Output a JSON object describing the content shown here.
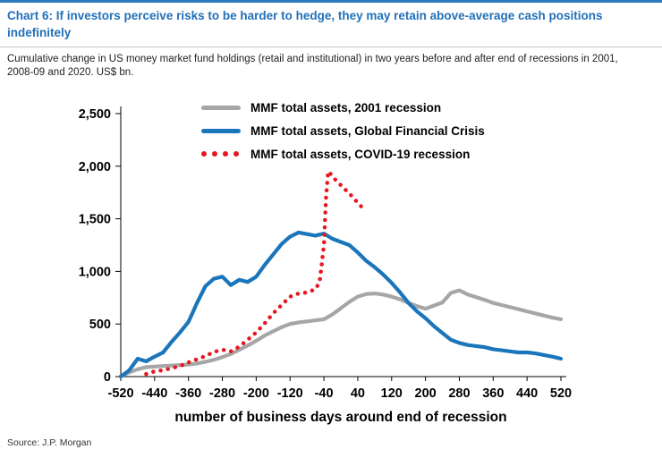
{
  "header": {
    "title": "Chart 6: If investors perceive risks to be harder to hedge, they may retain above-average cash positions indefinitely",
    "subtitle": "Cumulative change in US money market fund holdings (retail and institutional) in two years before and after end of recessions in 2001, 2008-09 and 2020. US$ bn."
  },
  "footer": {
    "source": "Source: J.P. Morgan"
  },
  "colors": {
    "title_blue": "#2170b8",
    "series_gray": "#a6a6a6",
    "series_blue": "#1b75bb",
    "series_red": "#e8161e"
  },
  "chart_data": {
    "type": "line",
    "title": "",
    "xlabel": "number of business days around end of recession",
    "ylabel": "",
    "xlim": [
      -520,
      520
    ],
    "ylim": [
      0,
      2500
    ],
    "grid": false,
    "legend_position": "inside-top",
    "x_ticks": [
      -520,
      -440,
      -360,
      -280,
      -200,
      -120,
      -40,
      40,
      120,
      200,
      280,
      360,
      440,
      520
    ],
    "x_tick_labels": [
      "-520",
      "-440",
      "-360",
      "-280",
      "-200",
      "-120",
      "-40",
      "40",
      "120",
      "200",
      "280",
      "360",
      "440",
      "520"
    ],
    "y_ticks": [
      0,
      500,
      1000,
      1500,
      2000,
      2500
    ],
    "y_tick_labels": [
      "0",
      "500",
      "1,000",
      "1,500",
      "2,000",
      "2,500"
    ],
    "series": [
      {
        "name": "MMF total assets, 2001 recession",
        "color": "#a6a6a6",
        "style": "solid",
        "x": [
          -520,
          -500,
          -480,
          -460,
          -440,
          -420,
          -400,
          -380,
          -360,
          -340,
          -320,
          -300,
          -280,
          -260,
          -240,
          -220,
          -200,
          -180,
          -160,
          -140,
          -120,
          -100,
          -80,
          -60,
          -40,
          -20,
          0,
          20,
          40,
          60,
          80,
          100,
          120,
          140,
          160,
          180,
          200,
          220,
          240,
          260,
          280,
          300,
          320,
          340,
          360,
          380,
          400,
          420,
          440,
          460,
          480,
          500,
          520
        ],
        "values": [
          5,
          40,
          70,
          90,
          95,
          100,
          105,
          110,
          115,
          125,
          140,
          160,
          185,
          215,
          255,
          295,
          340,
          390,
          430,
          470,
          500,
          515,
          525,
          535,
          545,
          590,
          650,
          710,
          760,
          785,
          790,
          780,
          760,
          735,
          700,
          670,
          645,
          675,
          705,
          795,
          820,
          780,
          755,
          730,
          700,
          680,
          660,
          640,
          620,
          600,
          580,
          560,
          545
        ]
      },
      {
        "name": "MMF total assets, Global Financial Crisis",
        "color": "#1b75bb",
        "style": "solid",
        "x": [
          -520,
          -500,
          -480,
          -460,
          -440,
          -420,
          -400,
          -380,
          -360,
          -340,
          -320,
          -300,
          -280,
          -260,
          -240,
          -220,
          -200,
          -180,
          -160,
          -140,
          -120,
          -100,
          -80,
          -60,
          -40,
          -20,
          0,
          20,
          40,
          60,
          80,
          100,
          120,
          140,
          160,
          180,
          200,
          220,
          240,
          260,
          280,
          300,
          320,
          340,
          360,
          380,
          400,
          420,
          440,
          460,
          480,
          500,
          520
        ],
        "values": [
          0,
          60,
          170,
          145,
          190,
          230,
          330,
          420,
          520,
          700,
          860,
          930,
          950,
          870,
          920,
          900,
          950,
          1060,
          1160,
          1260,
          1330,
          1370,
          1355,
          1340,
          1360,
          1310,
          1280,
          1250,
          1180,
          1100,
          1040,
          970,
          890,
          800,
          700,
          620,
          555,
          480,
          415,
          350,
          320,
          300,
          290,
          280,
          260,
          250,
          240,
          230,
          230,
          220,
          205,
          190,
          170
        ]
      },
      {
        "name": "MMF total assets, COVID-19 recession",
        "color": "#e8161e",
        "style": "dotted",
        "x": [
          -460,
          -440,
          -420,
          -400,
          -380,
          -360,
          -340,
          -320,
          -300,
          -280,
          -260,
          -240,
          -220,
          -200,
          -180,
          -160,
          -140,
          -120,
          -100,
          -80,
          -60,
          -50,
          -40,
          -35,
          -30,
          -25,
          -20,
          -10,
          0,
          10,
          20,
          30,
          40,
          50,
          60
        ],
        "values": [
          25,
          50,
          60,
          80,
          100,
          135,
          165,
          195,
          235,
          255,
          240,
          285,
          350,
          420,
          505,
          600,
          680,
          760,
          790,
          800,
          830,
          900,
          1250,
          1700,
          1950,
          1930,
          1900,
          1860,
          1820,
          1780,
          1740,
          1700,
          1650,
          1610,
          1580
        ]
      }
    ]
  }
}
